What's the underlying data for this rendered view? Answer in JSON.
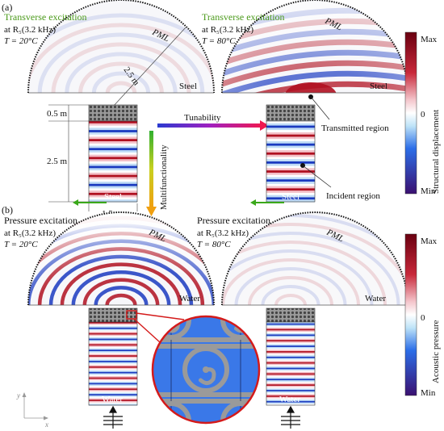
{
  "panels": {
    "a_label": "(a)",
    "b_label": "(b)"
  },
  "panel_a": {
    "left_title": "Transverse excitation",
    "left_freq": "at R₅(3.2 kHz)",
    "left_temp": "T = 20°C",
    "right_title": "Transverse excitation",
    "right_freq": "at R₅(3.2 kHz)",
    "right_temp": "T = 80°C",
    "pml_label": "PML",
    "dome_material": "Steel",
    "duct_material": "Steel",
    "radius_label": "2.5 m",
    "dim_plate": "0.5 m",
    "dim_duct": "2.5 m",
    "dim_width": "1.5 m",
    "arrow_h_label": "Tunability",
    "arrow_v_label": "Multifunctionality",
    "transmitted_label": "Transmitted region",
    "incident_label": "Incident region",
    "colorbar_max": "Max",
    "colorbar_zero": "0",
    "colorbar_min": "Min",
    "colorbar_title": "Structural displacement"
  },
  "panel_b": {
    "left_title": "Pressure excitation",
    "left_freq": "at R₅(3.2 kHz)",
    "left_temp": "T = 20°C",
    "right_title": "Pressure excitation",
    "right_freq": "at R₅(3.2 kHz)",
    "right_temp": "T = 80°C",
    "pml_label": "PML",
    "dome_material": "Water",
    "duct_material": "Water",
    "colorbar_max": "Max",
    "colorbar_zero": "0",
    "colorbar_min": "Min",
    "colorbar_title": "Acoustic pressure"
  },
  "axes": {
    "y": "y",
    "x": "x"
  },
  "colors": {
    "title_green": "#4a9a1a",
    "wave_red": "#b01020",
    "wave_blue": "#1a3ac0",
    "metamaterial_blue": "#3a78e8",
    "inset_outline": "#d41a1a"
  }
}
